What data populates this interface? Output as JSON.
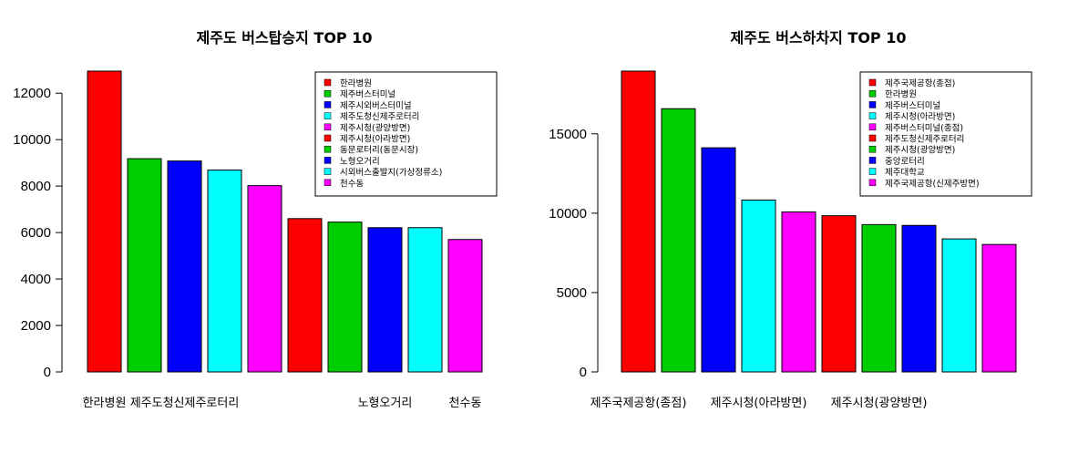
{
  "chart_data": [
    {
      "type": "bar",
      "title": "제주도 버스탑승지 TOP 10",
      "categories": [
        "한라병원",
        "제주버스터미널",
        "제주시외버스터미널",
        "제주도청신제주로터리",
        "제주시청(광양방면)",
        "제주시청(아라방면)",
        "동문로터리(동문시장)",
        "노형오거리",
        "시외버스출발지(가상정류소)",
        "천수동"
      ],
      "values": [
        12950,
        9180,
        9080,
        8690,
        8020,
        6600,
        6450,
        6210,
        6210,
        5700
      ],
      "colors": [
        "#FF0000",
        "#00CD00",
        "#0000FF",
        "#00FFFF",
        "#FF00FF",
        "#FF0000",
        "#00CD00",
        "#0000FF",
        "#00FFFF",
        "#FF00FF"
      ],
      "yticks": [
        "0",
        "2000",
        "4000",
        "6000",
        "8000",
        "10000",
        "12000"
      ],
      "ylim": [
        0,
        12950
      ],
      "xlabels": [
        "한라병원",
        "",
        "제주도청신제주로터리",
        "",
        "",
        "",
        "",
        "노형오거리",
        "",
        "천수동"
      ],
      "legend_position": "top-right",
      "legend": [
        "한라병원",
        "제주버스터미널",
        "제주시외버스터미널",
        "제주도청신제주로터리",
        "제주시청(광양방면)",
        "제주시청(아라방면)",
        "동문로터리(동문시장)",
        "노형오거리",
        "시외버스출발지(가상정류소)",
        "천수동"
      ]
    },
    {
      "type": "bar",
      "title": "제주도 버스하차지 TOP 10",
      "categories": [
        "제주국제공항(종점)",
        "한라병원",
        "제주버스터미널",
        "제주시청(아라방면)",
        "제주버스터미널(종점)",
        "제주도청신제주로터리",
        "제주시청(광양방면)",
        "중앙로터리",
        "제주대학교",
        "제주국제공항(신제주방면)"
      ],
      "values": [
        18950,
        16580,
        14120,
        10830,
        10080,
        9840,
        9280,
        9230,
        8380,
        8030
      ],
      "colors": [
        "#FF0000",
        "#00CD00",
        "#0000FF",
        "#00FFFF",
        "#FF00FF",
        "#FF0000",
        "#00CD00",
        "#0000FF",
        "#00FFFF",
        "#FF00FF"
      ],
      "yticks": [
        "0",
        "5000",
        "10000",
        "15000"
      ],
      "ylim": [
        0,
        18950
      ],
      "xlabels": [
        "제주국제공항(종점)",
        "",
        "",
        "제주시청(아라방면)",
        "",
        "",
        "제주시청(광양방면)",
        "",
        "",
        ""
      ],
      "legend_position": "top-right",
      "legend": [
        "제주국제공항(종점)",
        "한라병원",
        "제주버스터미널",
        "제주시청(아라방면)",
        "제주버스터미널(종점)",
        "제주도청신제주로터리",
        "제주시청(광양방면)",
        "중앙로터리",
        "제주대학교",
        "제주국제공항(신제주방면)"
      ]
    }
  ]
}
